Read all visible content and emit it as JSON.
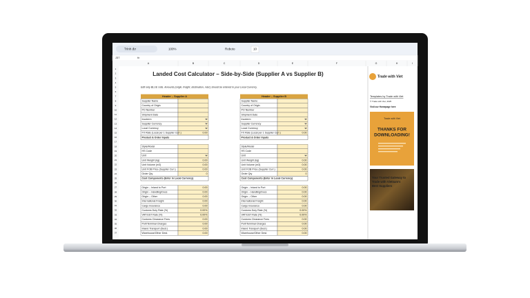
{
  "toolbar": {
    "menu": "Trình đơ",
    "zoom": "100%",
    "font": "Roboto",
    "font_size": "10"
  },
  "formula_bar": {
    "cell": "J37",
    "fx": "fx"
  },
  "columns": [
    "A",
    "B",
    "C",
    "D",
    "E",
    "F",
    "G",
    "H",
    "I"
  ],
  "row_numbers": [
    1,
    2,
    3,
    4,
    5,
    6,
    7,
    8,
    9,
    10,
    11,
    12,
    13,
    14,
    15,
    16,
    17,
    18,
    19,
    20,
    21,
    22,
    23,
    24,
    25,
    26,
    27,
    28,
    29,
    30,
    31,
    32,
    33,
    34,
    35,
    36,
    37
  ],
  "title": "Landed Cost Calculator – Side-by-Side (Supplier A vs Supplier B)",
  "note": "Edit only BLUE cells. Amounts (origin, freight, destination, misc) should be entered in your Local Currency.",
  "panels": [
    {
      "header": "Header – Supplier A",
      "rows": [
        {
          "label": "Supplier Name"
        },
        {
          "label": "Country of Origin"
        },
        {
          "label": "PO Number"
        },
        {
          "label": "Shipment Date"
        },
        {
          "label": "Incoterm",
          "dropdown": true
        },
        {
          "label": "Supplier Currency",
          "dropdown": true
        },
        {
          "label": "Local Currency",
          "dropdown": true
        },
        {
          "label": "FX Rate (Local per 1 Supplier Curr.)",
          "value": "0.00"
        },
        {
          "label": "Product & Order Inputs",
          "section": true
        },
        null,
        {
          "label": "Style/Model"
        },
        {
          "label": "HS Code"
        },
        {
          "label": "Unit",
          "dropdown": true
        },
        {
          "label": "Unit Weight (kg)",
          "value": "0.00"
        },
        {
          "label": "Unit Volume (m3)",
          "value": "0.00"
        },
        {
          "label": "Unit FOB Price (Supplier Curr.)",
          "value": "0.00"
        },
        {
          "label": "Order Qty",
          "value": "0"
        },
        {
          "label": "Cost Components (Enter in Local Currency)",
          "section": true
        },
        null,
        {
          "label": "Origin – Inland to Port",
          "value": "0.00"
        },
        {
          "label": "Origin – Handling/Docs",
          "value": "0.00"
        },
        {
          "label": "Origin – Other",
          "value": "0.00"
        },
        {
          "label": "International Freight",
          "value": "0.00"
        },
        {
          "label": "Cargo Insurance",
          "value": "0.00"
        },
        {
          "label": "Customs Duty Rate (%)",
          "value": "0.00%"
        },
        {
          "label": "VAT/GST Rate (%)",
          "value": "0.00%"
        },
        {
          "label": "Customs Clearance Fees",
          "value": "0.00"
        },
        {
          "label": "Port/Terminal Charges",
          "value": "0.00"
        },
        {
          "label": "Inland Transport (Dest.)",
          "value": "0.00"
        },
        {
          "label": "Warehouse/Other Dest.",
          "value": "0.00"
        }
      ]
    },
    {
      "header": "Header – Supplier B",
      "rows": [
        {
          "label": "Supplier Name"
        },
        {
          "label": "Country of Origin"
        },
        {
          "label": "PO Number"
        },
        {
          "label": "Shipment Date"
        },
        {
          "label": "Incoterm",
          "dropdown": true
        },
        {
          "label": "Supplier Currency",
          "dropdown": true
        },
        {
          "label": "Local Currency",
          "dropdown": true
        },
        {
          "label": "FX Rate (Local per 1 Supplier Curr.)",
          "value": "0.00"
        },
        {
          "label": "Product & Order Inputs",
          "section": true
        },
        null,
        {
          "label": "Style/Model"
        },
        {
          "label": "HS Code"
        },
        {
          "label": "Unit",
          "dropdown": true
        },
        {
          "label": "Unit Weight (kg)",
          "value": "0.00"
        },
        {
          "label": "Unit Volume (m3)",
          "value": "0.00"
        },
        {
          "label": "Unit FOB Price (Supplier Curr.)",
          "value": "0.00"
        },
        {
          "label": "Order Qty",
          "value": "0"
        },
        {
          "label": "Cost Components (Enter in Local Currency)",
          "section": true
        },
        null,
        {
          "label": "Origin – Inland to Port",
          "value": "0.00"
        },
        {
          "label": "Origin – Handling/Docs",
          "value": "0.00"
        },
        {
          "label": "Origin – Other",
          "value": "0.00"
        },
        {
          "label": "International Freight",
          "value": "0.00"
        },
        {
          "label": "Cargo Insurance",
          "value": "0.00"
        },
        {
          "label": "Customs Duty Rate (%)",
          "value": "0.00%"
        },
        {
          "label": "VAT/GST Rate (%)",
          "value": "0.00%"
        },
        {
          "label": "Customs Clearance Fees",
          "value": "0.00"
        },
        {
          "label": "Port/Terminal Charges",
          "value": "0.00"
        },
        {
          "label": "Inland Transport (Dest.)",
          "value": "0.00"
        },
        {
          "label": "Warehouse/Other Dest.",
          "value": "0.00"
        }
      ]
    }
  ],
  "sidebar": {
    "logo": "Trade with Viet",
    "link": "Templates by Trade with Viet",
    "copyright": "© Trade with Viet, 2025",
    "homepage": "Visit our Homepage here",
    "promo_title": [
      "THANKS FOR",
      "DOWNLOADING!"
    ],
    "banner": [
      "Your Trusted Gateway to",
      "Trade with Vietnam's",
      "Best Suppliers"
    ]
  }
}
